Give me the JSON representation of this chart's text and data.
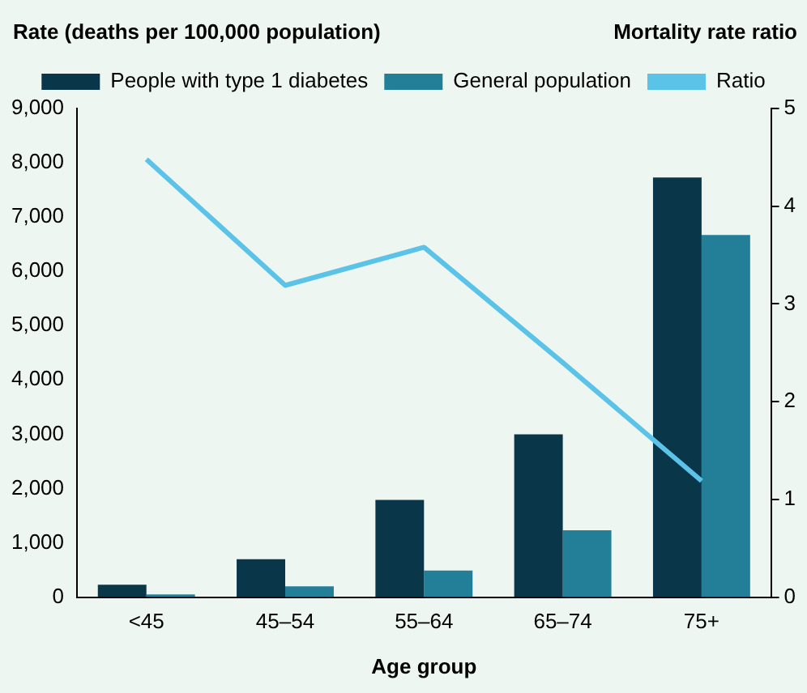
{
  "chart_data": {
    "type": "bar",
    "ylabel": "Rate (deaths per 100,000 population)",
    "y2label": "Mortality rate ratio",
    "xlabel": "Age group",
    "categories": [
      "<45",
      "45–54",
      "55–64",
      "65–74",
      "75+"
    ],
    "series": [
      {
        "name": "People with type 1 diabetes",
        "color": "#0a3649",
        "values": [
          230,
          700,
          1790,
          3000,
          7730
        ]
      },
      {
        "name": "General population",
        "color": "#237f98",
        "values": [
          50,
          200,
          490,
          1230,
          6670
        ]
      },
      {
        "name": "Ratio",
        "type": "line",
        "axis": "y2",
        "color": "#5bc3e8",
        "values": [
          4.48,
          3.19,
          3.58,
          2.4,
          1.19
        ]
      }
    ],
    "ylim": [
      0,
      9000
    ],
    "yticks": [
      0,
      {
        "value": 1000,
        "label": "1,000"
      },
      {
        "value": 2000,
        "label": "2,000"
      },
      {
        "value": 3000,
        "label": "3,000"
      },
      {
        "value": 4000,
        "label": "4,000"
      },
      {
        "value": 5000,
        "label": "5,000"
      },
      {
        "value": 6000,
        "label": "6,000"
      },
      {
        "value": 7000,
        "label": "7,000"
      },
      {
        "value": 8000,
        "label": "8,000"
      },
      {
        "value": 9000,
        "label": "9,000"
      }
    ],
    "y2lim": [
      0,
      5
    ],
    "y2ticks": [
      0,
      1,
      2,
      3,
      4,
      5
    ],
    "grid": false,
    "legend": "top",
    "marker": "none"
  }
}
